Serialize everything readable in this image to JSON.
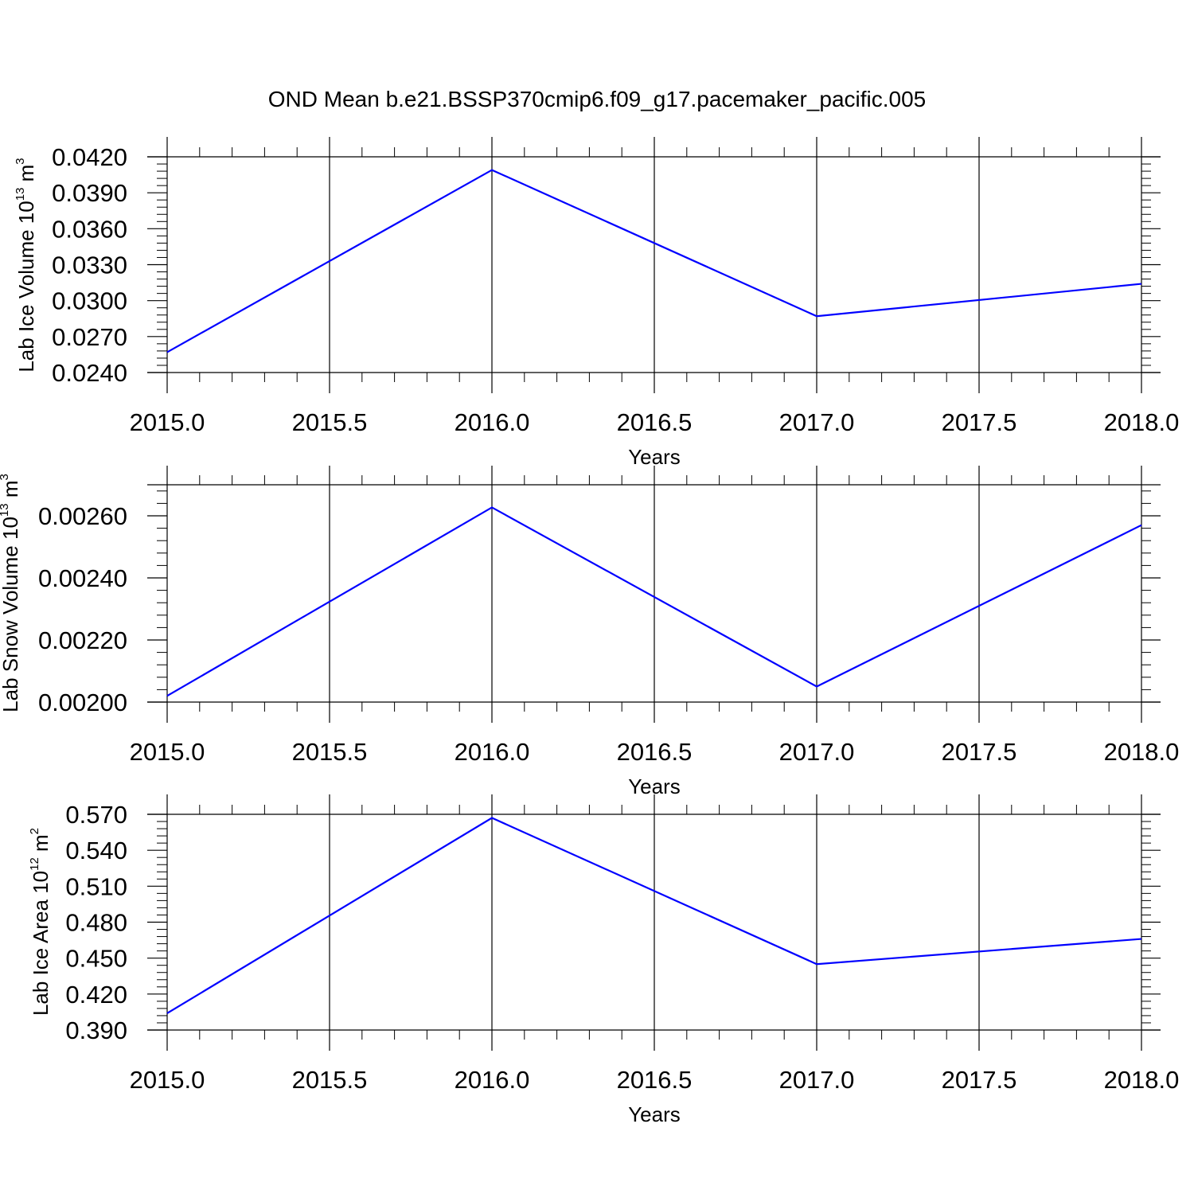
{
  "title": "OND Mean b.e21.BSSP370cmip6.f09_g17.pacemaker_pacific.005",
  "colors": {
    "series": "#0000ff",
    "frame": "#000000",
    "grid": "#000000"
  },
  "chart_data": [
    {
      "type": "line",
      "xlabel": "Years",
      "ylabel": {
        "text": "Lab Ice Volume 10",
        "exp": "13",
        "unit": "m",
        "unit_exp": "3"
      },
      "x": [
        2015,
        2016,
        2017,
        2018
      ],
      "series": [
        {
          "values": [
            0.0257,
            0.0409,
            0.0287,
            0.0314
          ]
        }
      ],
      "xlim": [
        2015,
        2018
      ],
      "ylim": [
        0.024,
        0.042
      ],
      "xticks": [
        "2015.0",
        "2015.5",
        "2016.0",
        "2016.5",
        "2017.0",
        "2017.5",
        "2018.0"
      ],
      "yticks": [
        "0.0240",
        "0.0270",
        "0.0300",
        "0.0330",
        "0.0360",
        "0.0390",
        "0.0420"
      ],
      "grid": "vertical dashed",
      "legend": "none"
    },
    {
      "type": "line",
      "xlabel": "Years",
      "ylabel": {
        "text": "Lab Snow Volume 10",
        "exp": "13",
        "unit": "m",
        "unit_exp": "3"
      },
      "x": [
        2015,
        2016,
        2017,
        2018
      ],
      "series": [
        {
          "values": [
            0.00202,
            0.002627,
            0.00205,
            0.00257
          ]
        }
      ],
      "xlim": [
        2015,
        2018
      ],
      "ylim": [
        0.002,
        0.0027
      ],
      "xticks": [
        "2015.0",
        "2015.5",
        "2016.0",
        "2016.5",
        "2017.0",
        "2017.5",
        "2018.0"
      ],
      "yticks": [
        "0.00200",
        "0.00220",
        "0.00240",
        "0.00260"
      ],
      "grid": "vertical dashed",
      "legend": "none"
    },
    {
      "type": "line",
      "xlabel": "Years",
      "ylabel": {
        "text": "Lab Ice Area 10",
        "exp": "12",
        "unit": "m",
        "unit_exp": "2"
      },
      "x": [
        2015,
        2016,
        2017,
        2018
      ],
      "series": [
        {
          "values": [
            0.404,
            0.567,
            0.445,
            0.466
          ]
        }
      ],
      "xlim": [
        2015,
        2018
      ],
      "ylim": [
        0.39,
        0.57
      ],
      "xticks": [
        "2015.0",
        "2015.5",
        "2016.0",
        "2016.5",
        "2017.0",
        "2017.5",
        "2018.0"
      ],
      "yticks": [
        "0.390",
        "0.420",
        "0.450",
        "0.480",
        "0.510",
        "0.540",
        "0.570"
      ],
      "grid": "vertical dashed",
      "legend": "none"
    }
  ]
}
